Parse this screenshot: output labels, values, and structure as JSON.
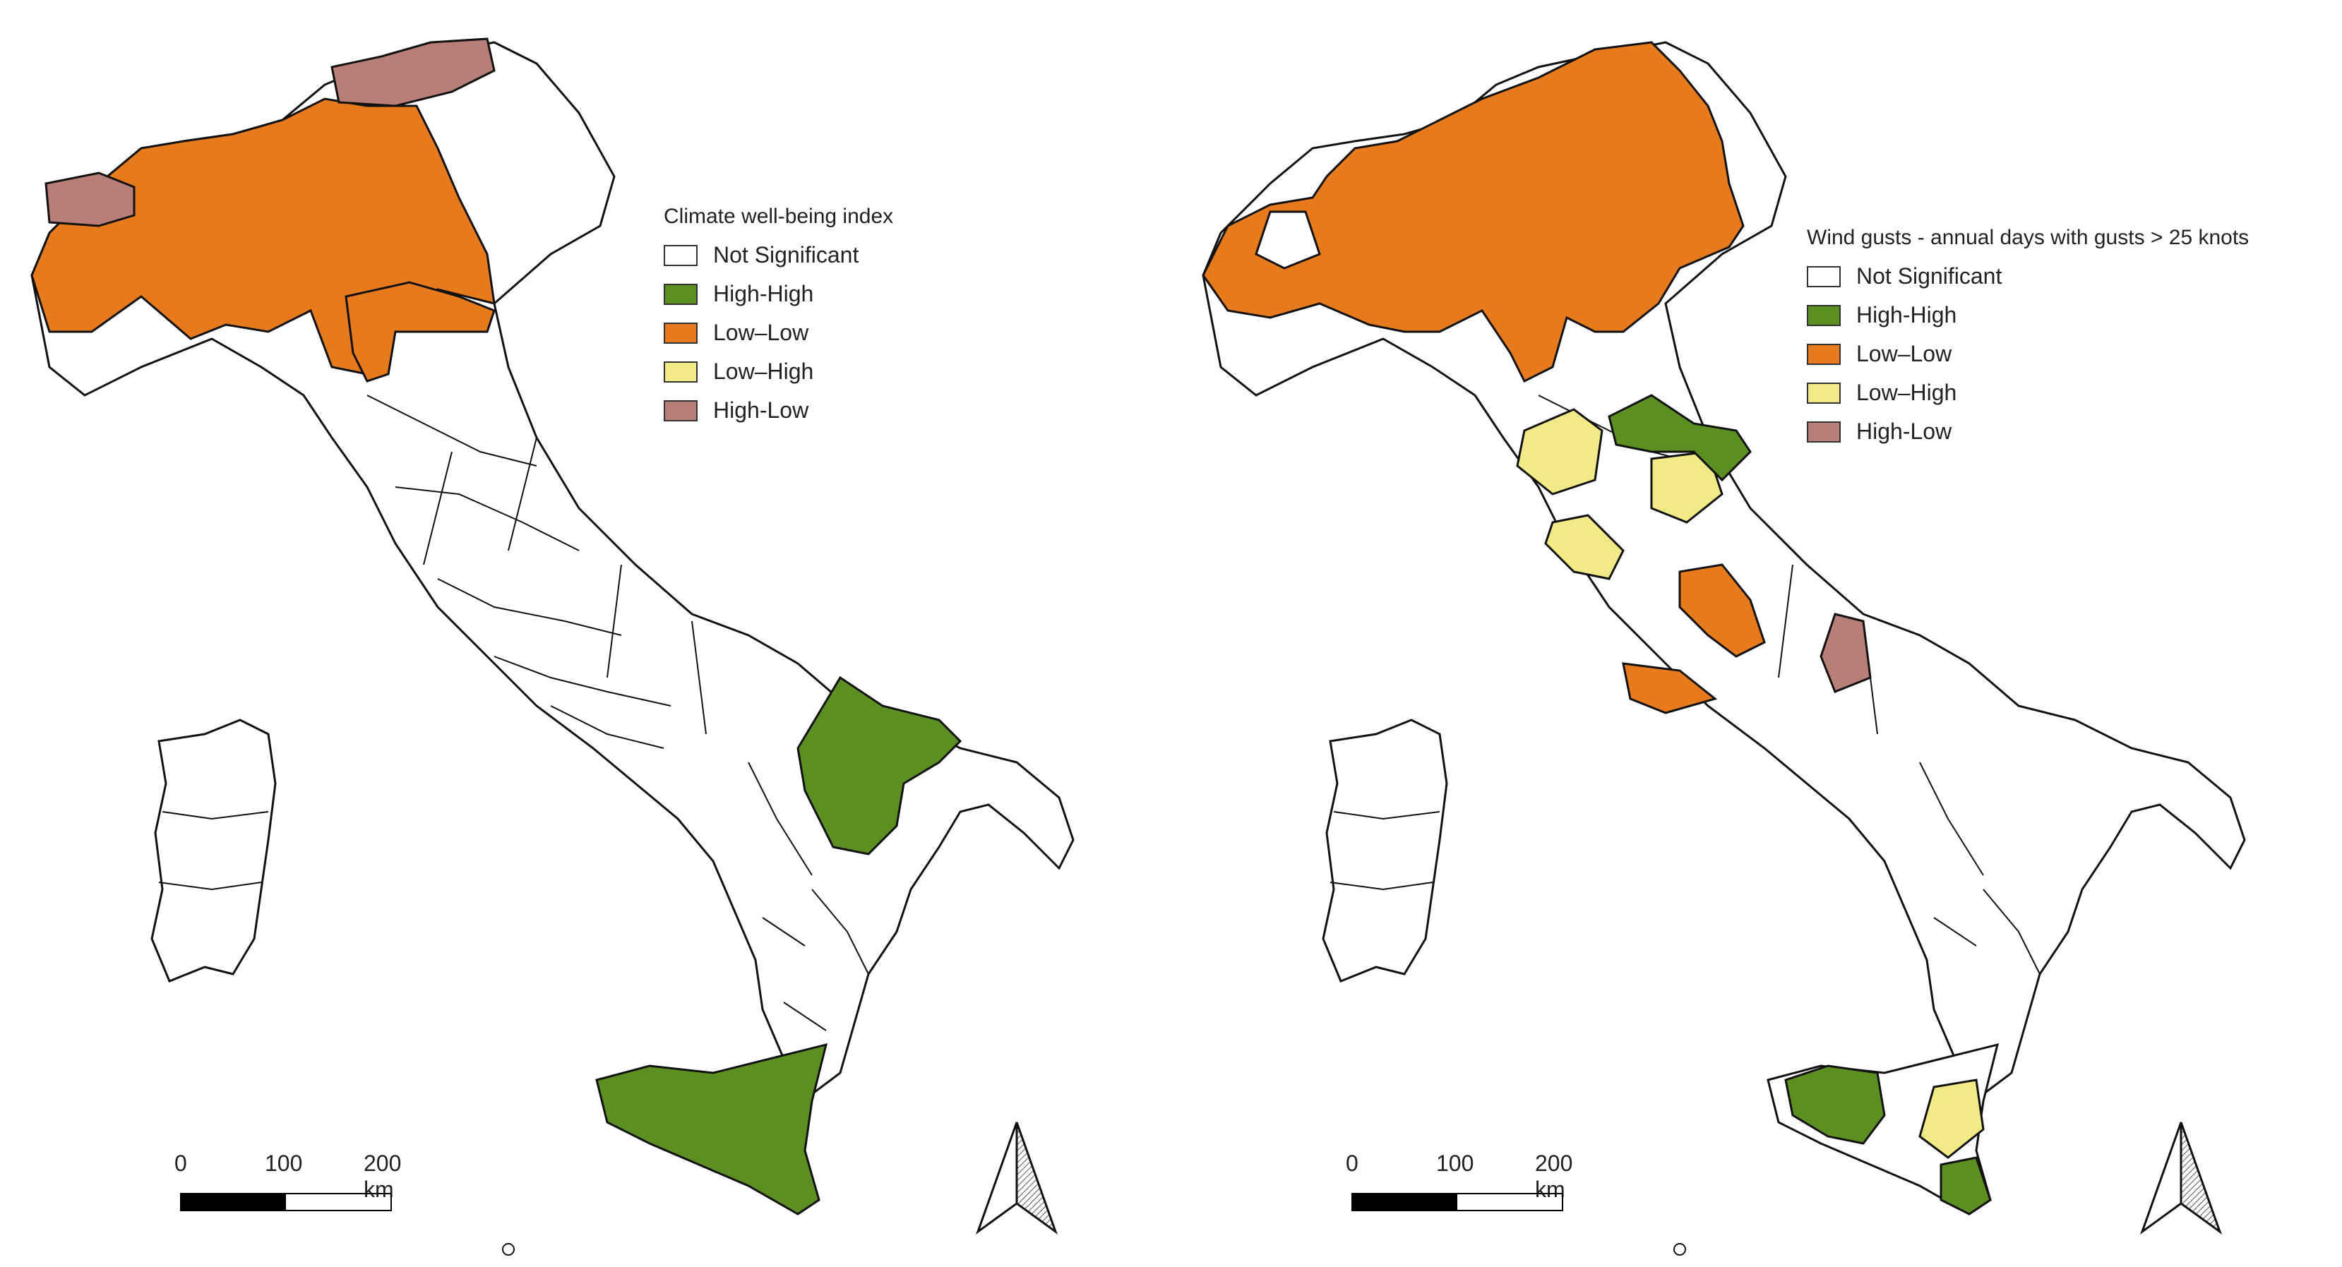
{
  "colors": {
    "not_significant": "#ffffff",
    "high_high": "#5b8f22",
    "low_low": "#e87a1e",
    "low_high": "#f1ea86",
    "high_low": "#b97e77",
    "outline": "#111111"
  },
  "legend_categories": [
    "Not Significant",
    "High-High",
    "Low–Low",
    "Low–High",
    "High-Low"
  ],
  "maps": [
    {
      "id": "left",
      "legend_title": "Climate well-being index",
      "scale": {
        "labels": [
          "0",
          "100",
          "200 km"
        ]
      },
      "north_arrow": "north-arrow-icon"
    },
    {
      "id": "right",
      "legend_title": "Wind gusts - annual days with gusts > 25 knots",
      "scale": {
        "labels": [
          "0",
          "100",
          "200 km"
        ]
      },
      "north_arrow": "north-arrow-icon"
    }
  ]
}
